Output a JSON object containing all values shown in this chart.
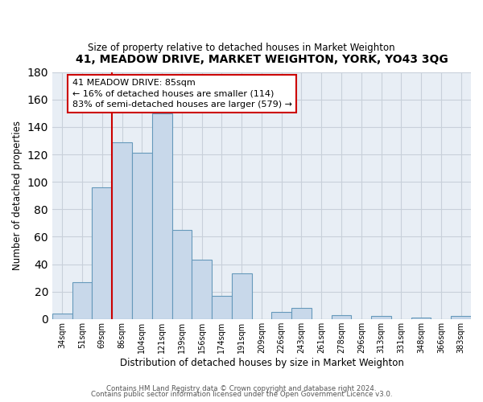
{
  "title": "41, MEADOW DRIVE, MARKET WEIGHTON, YORK, YO43 3QG",
  "subtitle": "Size of property relative to detached houses in Market Weighton",
  "xlabel": "Distribution of detached houses by size in Market Weighton",
  "ylabel": "Number of detached properties",
  "bar_labels": [
    "34sqm",
    "51sqm",
    "69sqm",
    "86sqm",
    "104sqm",
    "121sqm",
    "139sqm",
    "156sqm",
    "174sqm",
    "191sqm",
    "209sqm",
    "226sqm",
    "243sqm",
    "261sqm",
    "278sqm",
    "296sqm",
    "313sqm",
    "331sqm",
    "348sqm",
    "366sqm",
    "383sqm"
  ],
  "bar_values": [
    4,
    27,
    96,
    129,
    121,
    150,
    65,
    43,
    17,
    33,
    0,
    5,
    8,
    0,
    3,
    0,
    2,
    0,
    1,
    0,
    2
  ],
  "bar_color": "#c8d8ea",
  "bar_edge_color": "#6699bb",
  "vline_color": "#cc0000",
  "ylim": [
    0,
    180
  ],
  "yticks": [
    0,
    20,
    40,
    60,
    80,
    100,
    120,
    140,
    160,
    180
  ],
  "annotation_text": "41 MEADOW DRIVE: 85sqm\n← 16% of detached houses are smaller (114)\n83% of semi-detached houses are larger (579) →",
  "annotation_box_color": "#ffffff",
  "annotation_box_edge": "#cc0000",
  "footer_line1": "Contains HM Land Registry data © Crown copyright and database right 2024.",
  "footer_line2": "Contains public sector information licensed under the Open Government Licence v3.0.",
  "bg_color": "#ffffff",
  "plot_bg_color": "#e8eef5",
  "grid_color": "#c8d0da"
}
